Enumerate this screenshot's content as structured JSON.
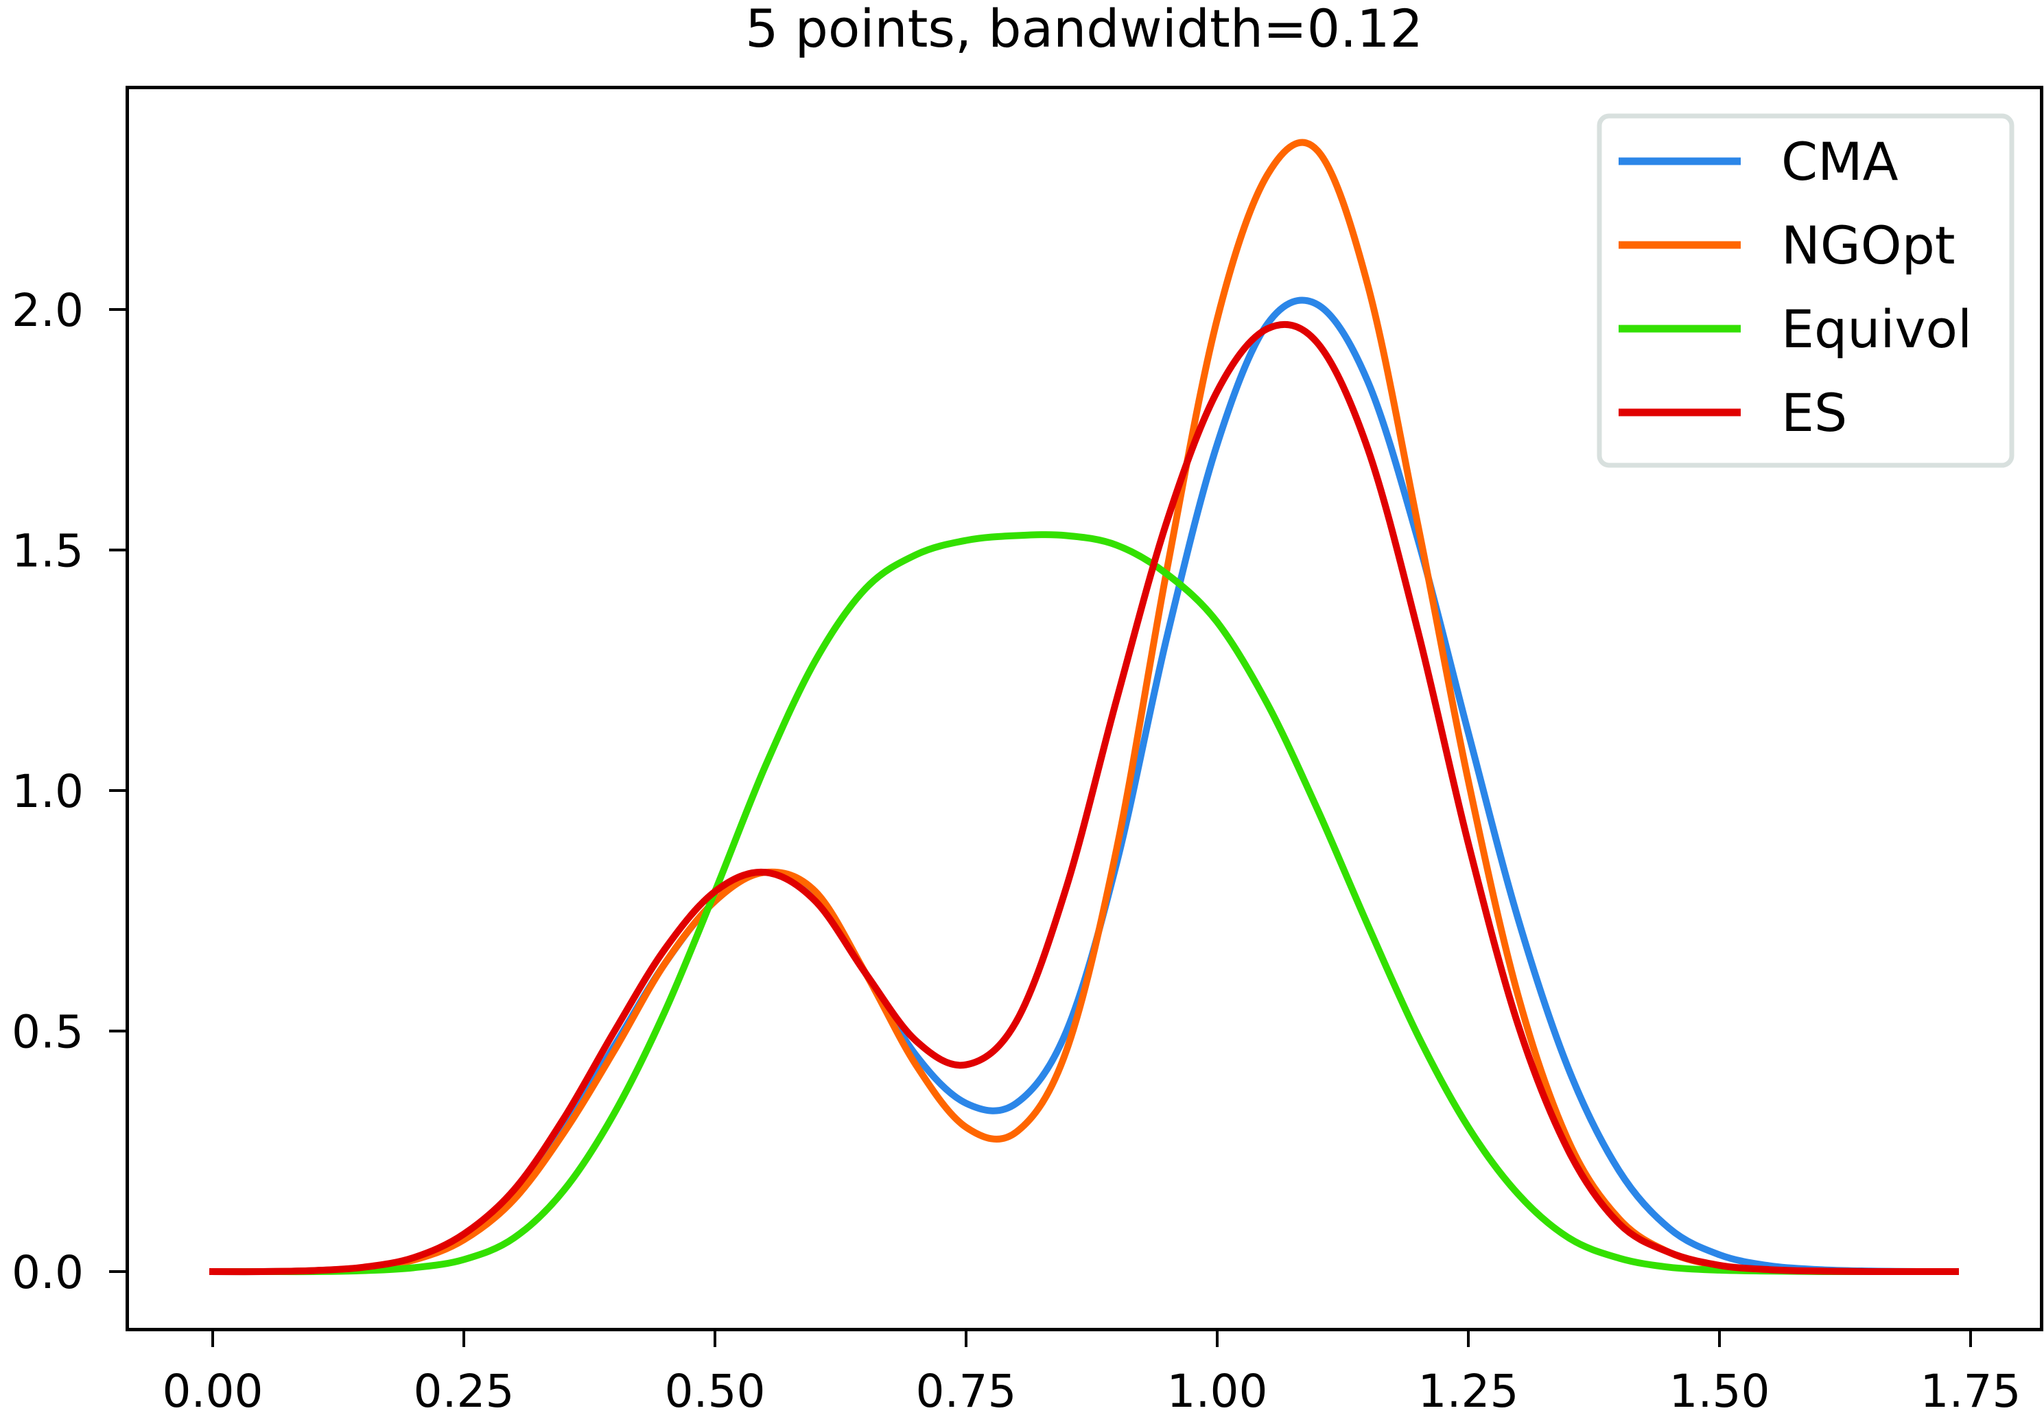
{
  "chart_data": {
    "type": "line",
    "title": "5 points, bandwidth=0.12",
    "xlabel": "",
    "ylabel": "",
    "xlim": [
      -0.087,
      1.79
    ],
    "ylim": [
      -0.12,
      2.46
    ],
    "grid": false,
    "legend_position": "upper right",
    "x_ticks": [
      "0.00",
      "0.25",
      "0.50",
      "0.75",
      "1.00",
      "1.25",
      "1.50",
      "1.75"
    ],
    "x_tick_values": [
      0,
      0.25,
      0.5,
      0.75,
      1.0,
      1.25,
      1.5,
      1.75
    ],
    "y_ticks": [
      "0.0",
      "0.5",
      "1.0",
      "1.5",
      "2.0"
    ],
    "y_tick_values": [
      0,
      0.5,
      1.0,
      1.5,
      2.0
    ],
    "x": [
      0.0,
      0.05,
      0.1,
      0.15,
      0.2,
      0.25,
      0.3,
      0.35,
      0.4,
      0.45,
      0.5,
      0.55,
      0.6,
      0.65,
      0.7,
      0.75,
      0.8,
      0.85,
      0.9,
      0.95,
      1.0,
      1.05,
      1.1,
      1.15,
      1.2,
      1.25,
      1.3,
      1.35,
      1.4,
      1.45,
      1.5,
      1.55,
      1.6,
      1.65,
      1.7,
      1.735
    ],
    "series": [
      {
        "name": "CMA",
        "color": "#2b86e8",
        "values": [
          0.0,
          0.0,
          0.002,
          0.008,
          0.025,
          0.07,
          0.16,
          0.3,
          0.47,
          0.64,
          0.77,
          0.83,
          0.78,
          0.62,
          0.45,
          0.35,
          0.35,
          0.5,
          0.85,
          1.32,
          1.72,
          1.97,
          2.01,
          1.85,
          1.52,
          1.12,
          0.73,
          0.42,
          0.21,
          0.09,
          0.035,
          0.012,
          0.004,
          0.001,
          0.0,
          0.0
        ]
      },
      {
        "name": "NGOpt",
        "color": "#ff6600",
        "values": [
          0.0,
          0.0,
          0.002,
          0.008,
          0.024,
          0.066,
          0.15,
          0.29,
          0.46,
          0.64,
          0.77,
          0.83,
          0.79,
          0.62,
          0.43,
          0.3,
          0.29,
          0.46,
          0.88,
          1.46,
          1.98,
          2.28,
          2.33,
          2.05,
          1.55,
          1.02,
          0.57,
          0.27,
          0.11,
          0.04,
          0.012,
          0.003,
          0.001,
          0.0,
          0.0,
          0.0
        ]
      },
      {
        "name": "Equivol",
        "color": "#33e000",
        "values": [
          0.0,
          0.0,
          0.0,
          0.002,
          0.008,
          0.025,
          0.07,
          0.17,
          0.33,
          0.54,
          0.79,
          1.05,
          1.27,
          1.42,
          1.49,
          1.52,
          1.53,
          1.53,
          1.51,
          1.45,
          1.35,
          1.18,
          0.96,
          0.72,
          0.49,
          0.3,
          0.16,
          0.07,
          0.028,
          0.009,
          0.003,
          0.001,
          0.0,
          0.0,
          0.0,
          0.0
        ]
      },
      {
        "name": "ES",
        "color": "#e00000",
        "values": [
          0.0,
          0.0,
          0.002,
          0.009,
          0.029,
          0.078,
          0.17,
          0.32,
          0.5,
          0.67,
          0.79,
          0.83,
          0.77,
          0.62,
          0.48,
          0.43,
          0.52,
          0.8,
          1.19,
          1.56,
          1.83,
          1.96,
          1.93,
          1.71,
          1.33,
          0.89,
          0.51,
          0.25,
          0.1,
          0.04,
          0.013,
          0.004,
          0.001,
          0.0,
          0.0,
          0.0
        ]
      }
    ]
  }
}
